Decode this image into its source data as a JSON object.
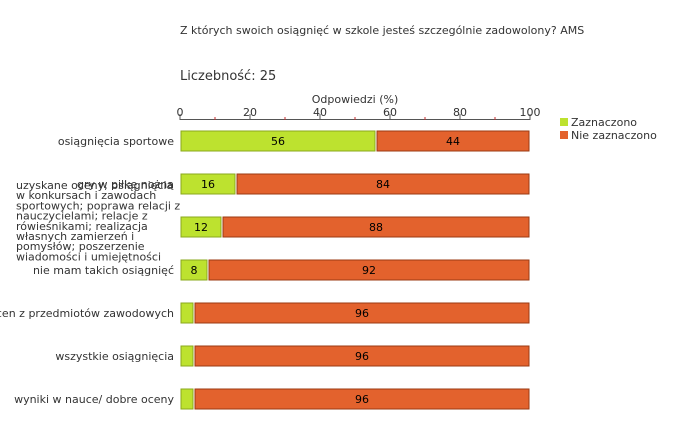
{
  "chart_data": {
    "type": "bar",
    "orientation": "horizontal",
    "stacked": true,
    "title": "Z których swoich osiągnięć w szkole jesteś szczególnie zadowolony? AMS",
    "subtitle": "Liczebność: 25",
    "xlabel": "Odpowiedzi (%)",
    "ylabel": "",
    "xlim": [
      0,
      100
    ],
    "xticks": [
      "0",
      "20",
      "40",
      "60",
      "80",
      "100"
    ],
    "legend_position": "right",
    "grid": false,
    "categories": [
      "osiągnięcia sportowe",
      "gry w piłkę nożną",
      "uzyskane oceny; osiągnięcia w konkursach i zawodach sportowych; poprawa relacji z nauczycielami; relacje z rówieśnikami; realizacja własnych zamierzeń i pomysłów; poszerzenie wiadomości i umiejętności",
      "nie mam takich osiągnięć",
      "ocen z przedmiotów zawodowych",
      "wszystkie osiągnięcia",
      "wyniki w nauce/ dobre oceny"
    ],
    "category_lines": [
      [
        "osiągnięcia sportowe"
      ],
      [
        "gry w piłkę nożną"
      ],
      [
        "uzyskane oceny; osiągnięcia",
        "w konkursach i zawodach",
        "sportowych; poprawa relacji z",
        "nauczycielami; relacje z",
        "rówieśnikami; realizacja",
        "własnych zamierzeń i",
        "pomysłów; poszerzenie",
        "wiadomości i umiejętności"
      ],
      [
        "nie mam takich osiągnięć"
      ],
      [
        "ocen z przedmiotów zawodowych"
      ],
      [
        "wszystkie osiągnięcia"
      ],
      [
        "wyniki w nauce/ dobre oceny"
      ]
    ],
    "series": [
      {
        "name": "Zaznaczono",
        "color": "#bde22f",
        "values": [
          56,
          16,
          12,
          8,
          4,
          4,
          4
        ],
        "labels": [
          "56",
          "16",
          "12",
          "8",
          "",
          "",
          ""
        ]
      },
      {
        "name": "Nie zaznaczono",
        "color": "#e3622d",
        "values": [
          44,
          84,
          88,
          92,
          96,
          96,
          96
        ],
        "labels": [
          "44",
          "84",
          "88",
          "92",
          "96",
          "96",
          "96"
        ]
      }
    ]
  }
}
